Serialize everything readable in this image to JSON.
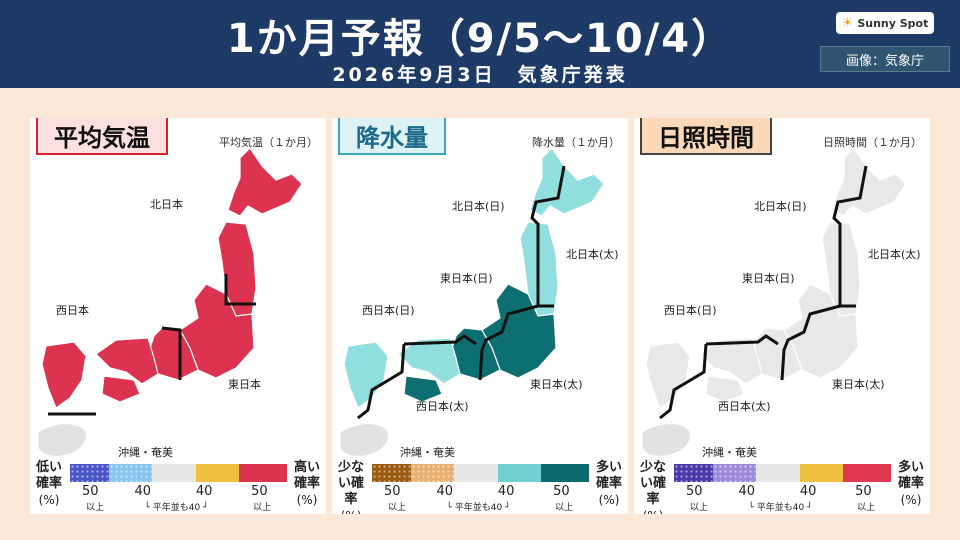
{
  "header": {
    "title": "1か月予報（9/5～10/4）",
    "subtitle": "2026年9月3日　気象庁発表",
    "logo": "Sunny Spot",
    "credit": "画像：気象庁"
  },
  "panels": [
    {
      "title": "平均気温",
      "subtitle": "平均気温（１か月）",
      "regions": [
        "北日本",
        "西日本",
        "東日本",
        "沖縄・奄美"
      ],
      "legend": {
        "left_label": "低い確率",
        "right_label": "高い確率",
        "pct": "(%)",
        "ticks": [
          "50",
          "40",
          "40",
          "50"
        ],
        "ijo": "以上",
        "heinen": "平年並も40",
        "colors": [
          "#4a56c8",
          "#86c6ee",
          "#e6e6e6",
          "#f0c040",
          "#dc3450"
        ]
      }
    },
    {
      "title": "降水量",
      "subtitle": "降水量（１か月）",
      "regions": [
        "北日本(日)",
        "北日本(太)",
        "東日本(日)",
        "西日本(日)",
        "東日本(太)",
        "西日本(太)",
        "沖縄・奄美"
      ],
      "legend": {
        "left_label": "少ない確率",
        "right_label": "多い確率",
        "pct": "(%)",
        "ticks": [
          "50",
          "40",
          "40",
          "50"
        ],
        "ijo": "以上",
        "heinen": "平年並も40",
        "colors": [
          "#9a5a10",
          "#e8b070",
          "#e6e6e6",
          "#70d0d0",
          "#0a6a6e"
        ]
      }
    },
    {
      "title": "日照時間",
      "subtitle": "日照時間（１か月）",
      "regions": [
        "北日本(日)",
        "北日本(太)",
        "東日本(日)",
        "西日本(日)",
        "東日本(太)",
        "西日本(太)",
        "沖縄・奄美"
      ],
      "legend": {
        "left_label": "少ない確率",
        "right_label": "多い確率",
        "pct": "(%)",
        "ticks": [
          "50",
          "40",
          "40",
          "50"
        ],
        "ijo": "以上",
        "heinen": "平年並も40",
        "colors": [
          "#4a3aa8",
          "#9a8ad8",
          "#e6e6e6",
          "#f0c040",
          "#e03850"
        ]
      }
    }
  ],
  "map_fill": {
    "temperature": "#dc3450",
    "precip_north": "#90dede",
    "precip_south": "#0e6f72",
    "sunshine": "#e8e8e8",
    "okinawa": "#e2e2e2"
  }
}
